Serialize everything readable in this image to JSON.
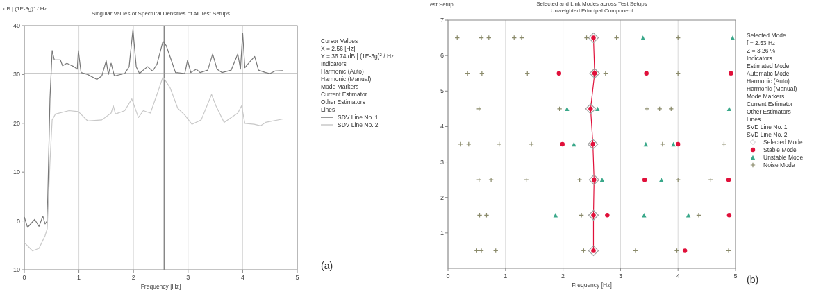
{
  "chart_data": [
    {
      "type": "line",
      "title": "Singular Values of Spectural Densities of All Test Setups",
      "xlabel": "Frequency [Hz]",
      "ylabel": "dB | (1E-3g)$^{2}$ / Hz",
      "xlim": [
        0,
        5
      ],
      "xticks": [
        0,
        1,
        2,
        3,
        4,
        5
      ],
      "ylim": [
        -10,
        40
      ],
      "yticks": [
        -10,
        0,
        10,
        20,
        30,
        40
      ],
      "grid": "x",
      "legend": "right",
      "ref_lines": [
        {
          "axis": "x",
          "value": 2.56,
          "color": "#555555"
        },
        {
          "axis": "y",
          "value": 30.2,
          "color": "#999999"
        }
      ],
      "annotations": [
        "Cursor Values",
        "X = 2.56 [Hz]",
        "Y = 36.74 dB | (1E-3g)$^{2}$ / Hz",
        "Indicators",
        "Harmonic (Auto)",
        "Harmonic (Manual)",
        "Mode Markers",
        "Current Estimator",
        "Other Estimators",
        "Lines",
        "(a)"
      ],
      "series": [
        {
          "name": "SDV Line No. 1",
          "color": "#777777",
          "x": [
            0,
            0.06,
            0.19,
            0.27,
            0.34,
            0.38,
            0.42,
            0.47,
            0.51,
            0.55,
            0.66,
            0.7,
            0.78,
            0.91,
            0.97,
            0.99,
            1.04,
            1.16,
            1.33,
            1.42,
            1.5,
            1.54,
            1.59,
            1.65,
            1.84,
            1.92,
            1.99,
            2.05,
            2.11,
            2.2,
            2.26,
            2.35,
            2.43,
            2.54,
            2.6,
            2.69,
            2.77,
            2.94,
            2.99,
            3.05,
            3.15,
            3.22,
            3.36,
            3.45,
            3.53,
            3.62,
            3.79,
            3.91,
            3.96,
            4.0,
            4.04,
            4.13,
            4.22,
            4.29,
            4.42,
            4.5,
            4.59,
            4.74
          ],
          "values": [
            0.8,
            -1.3,
            0.3,
            -1.1,
            1,
            -0.6,
            0,
            25,
            34.9,
            33,
            33,
            31.8,
            32.3,
            31.6,
            31.1,
            34.9,
            30.4,
            30,
            29,
            29.7,
            32.8,
            30,
            32.3,
            29.7,
            30.2,
            31.6,
            39.2,
            31.6,
            30.2,
            31.1,
            31.6,
            30.7,
            32.1,
            36.8,
            35.9,
            33,
            30.4,
            30.2,
            32.9,
            30.4,
            31.1,
            30.4,
            30.9,
            34.2,
            31.1,
            30.4,
            30.9,
            34.2,
            31.1,
            38.5,
            31.4,
            32.6,
            33.7,
            30.9,
            30.4,
            30.2,
            30.7,
            30.8
          ]
        },
        {
          "name": "SDV Line No. 2",
          "color": "#c8c8c8",
          "x": [
            0,
            0.15,
            0.27,
            0.38,
            0.42,
            0.47,
            0.51,
            0.57,
            0.82,
            0.99,
            1.16,
            1.42,
            1.59,
            1.63,
            1.67,
            1.84,
            1.97,
            2.09,
            2.18,
            2.31,
            2.43,
            2.54,
            2.67,
            2.81,
            2.94,
            3.07,
            3.24,
            3.43,
            3.51,
            3.66,
            3.91,
            3.98,
            4.04,
            4.21,
            4.33,
            4.42,
            4.74
          ],
          "values": [
            -4.4,
            -6.1,
            -5.6,
            -3,
            -1.6,
            12,
            20.7,
            21.9,
            22.6,
            22.4,
            20.5,
            20.7,
            22.1,
            23.6,
            21.9,
            22.6,
            25,
            21.2,
            22.6,
            22.1,
            25.9,
            29.5,
            27.3,
            23.1,
            21.7,
            19.8,
            20.7,
            25.9,
            23.6,
            20.2,
            22.1,
            23.6,
            20,
            19.8,
            19.5,
            20.2,
            20.9
          ]
        }
      ]
    },
    {
      "type": "scatter",
      "title": "Selected and Link Modes across Test Setups",
      "subtitle": "Unweighted Principal Component",
      "xlabel": "Frequency [Hz]",
      "ylabel": "Test Setup",
      "xlim": [
        0,
        5
      ],
      "xticks": [
        0,
        1,
        2,
        3,
        4,
        5
      ],
      "ylim": [
        0,
        7
      ],
      "yticks": [
        1,
        2,
        3,
        4,
        5,
        6,
        7
      ],
      "grid": "x",
      "legend": "right",
      "annotations": [
        "Selected Mode",
        "f = 2.53 Hz",
        "Z = 3.26 %",
        "Indicators",
        "Estimated Mode",
        "Automatic Mode",
        "Harmonic (Auto)",
        "Harmonic (Manual)",
        "Mode Markers",
        "Current Estimator",
        "Other Estimators",
        "Lines",
        "SVD Line No. 1",
        "SVD Line No. 2",
        "(b)"
      ],
      "series": [
        {
          "type": "line",
          "color": "#e0103a",
          "marker": "none",
          "x": [
            2.53,
            2.55,
            2.48,
            2.52,
            2.54,
            2.53,
            2.53
          ],
          "values": [
            6.5,
            5.5,
            4.5,
            3.5,
            2.5,
            1.5,
            0.5
          ]
        },
        {
          "name": "Selected Mode",
          "color": "#a0a0a0",
          "marker": "diamond",
          "x": [
            2.53,
            2.55,
            2.48,
            2.52,
            2.54,
            2.53,
            2.53
          ],
          "values": [
            6.5,
            5.5,
            4.5,
            3.5,
            2.5,
            1.5,
            0.5
          ]
        },
        {
          "name": "Stable Mode",
          "color": "#e0103a",
          "marker": "circle",
          "x": [
            2.53,
            1.93,
            2.55,
            3.45,
            4.92,
            2.48,
            1.99,
            2.52,
            4.0,
            2.54,
            3.42,
            4.88,
            2.53,
            2.77,
            4.89,
            2.53,
            4.12
          ],
          "values": [
            6.5,
            5.5,
            5.5,
            5.5,
            5.5,
            4.5,
            3.5,
            3.5,
            3.5,
            2.5,
            2.5,
            2.5,
            1.5,
            1.5,
            1.5,
            0.5,
            0.5
          ]
        },
        {
          "name": "Unstable Mode",
          "color": "#3aa88a",
          "marker": "triangle",
          "x": [
            3.39,
            4.95,
            2.07,
            2.6,
            4.89,
            2.19,
            3.44,
            3.92,
            2.68,
            3.71,
            1.87,
            3.41,
            4.18
          ],
          "values": [
            6.5,
            6.5,
            4.5,
            4.5,
            4.5,
            3.5,
            3.5,
            3.5,
            2.5,
            2.5,
            1.5,
            1.5,
            1.5
          ]
        },
        {
          "name": "Noise Mode",
          "color": "#8a8a6a",
          "marker": "cross",
          "x": [
            0.16,
            0.58,
            0.71,
            1.15,
            1.28,
            2.41,
            2.93,
            4.0,
            0.34,
            0.59,
            1.38,
            2.74,
            4.0,
            0.54,
            1.94,
            3.46,
            3.68,
            3.88,
            0.22,
            0.36,
            0.89,
            1.45,
            3.73,
            4.8,
            0.54,
            0.75,
            1.36,
            2.29,
            4.0,
            4.57,
            0.55,
            0.67,
            2.32,
            4.36,
            0.5,
            0.58,
            0.83,
            2.36,
            3.26,
            3.98,
            4.88
          ],
          "values": [
            6.5,
            6.5,
            6.5,
            6.5,
            6.5,
            6.5,
            6.5,
            6.5,
            5.5,
            5.5,
            5.5,
            5.5,
            5.5,
            4.5,
            4.5,
            4.5,
            4.5,
            4.5,
            3.5,
            3.5,
            3.5,
            3.5,
            3.5,
            3.5,
            2.5,
            2.5,
            2.5,
            2.5,
            2.5,
            2.5,
            1.5,
            1.5,
            1.5,
            1.5,
            0.5,
            0.5,
            0.5,
            0.5,
            0.5,
            0.5,
            0.5
          ]
        }
      ]
    }
  ]
}
